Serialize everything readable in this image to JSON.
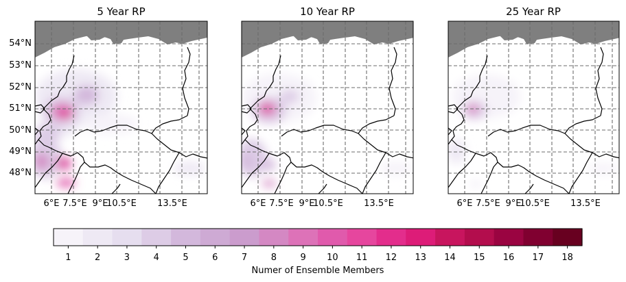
{
  "panels": [
    {
      "title": "5 Year RP"
    },
    {
      "title": "10 Year RP"
    },
    {
      "title": "25 Year RP"
    }
  ],
  "lat_ticks": [
    "54°N",
    "53°N",
    "52°N",
    "51°N",
    "50°N",
    "49°N",
    "48°N"
  ],
  "lon_ticks": [
    "6°E",
    "7.5°E",
    "9°E",
    "10.5°E",
    "13.5°E"
  ],
  "colorbar": {
    "label": "Numer of Ensemble Members",
    "ticks": [
      "1",
      "2",
      "3",
      "4",
      "5",
      "6",
      "7",
      "8",
      "9",
      "10",
      "11",
      "12",
      "13",
      "14",
      "15",
      "16",
      "17",
      "18"
    ],
    "colors": [
      "#f6f3f9",
      "#eee9f4",
      "#e6deef",
      "#ddcce6",
      "#d3b8dc",
      "#ceaad4",
      "#cb9ccd",
      "#d488c3",
      "#dd72b8",
      "#e05aac",
      "#e6469e",
      "#e32d8c",
      "#dd1c78",
      "#c8155e",
      "#b30d4d",
      "#9a0441",
      "#800030",
      "#680020"
    ],
    "range": [
      1,
      18.5
    ]
  },
  "land_color": "#7f7f7f",
  "grid_color": "#6b6b6b"
}
